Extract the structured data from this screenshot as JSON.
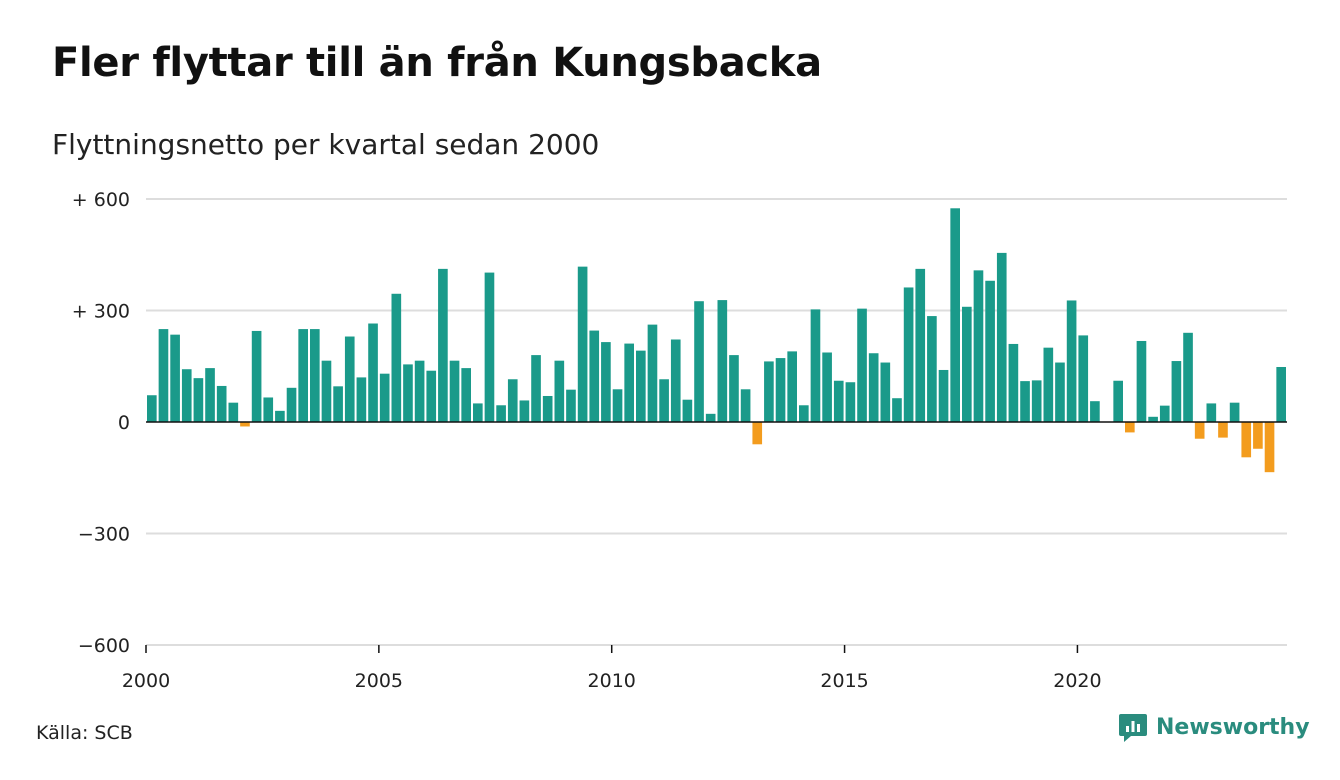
{
  "header": {
    "title": "Fler flyttar till än från Kungsbacka",
    "subtitle": "Flyttningsnetto per kvartal sedan 2000"
  },
  "footer": {
    "source": "Källa: SCB",
    "brand": "Newsworthy"
  },
  "chart_data": {
    "type": "bar",
    "title": "Fler flyttar till än från Kungsbacka",
    "subtitle": "Flyttningsnetto per kvartal sedan 2000",
    "x_start": "2000 Q1",
    "x_ticks": [
      "2000",
      "2005",
      "2010",
      "2015",
      "2020"
    ],
    "y_ticks": [
      {
        "value": 600,
        "label": "+ 600"
      },
      {
        "value": 300,
        "label": "+ 300"
      },
      {
        "value": 0,
        "label": "0"
      },
      {
        "value": -300,
        "label": "−300"
      },
      {
        "value": -600,
        "label": "−600"
      }
    ],
    "ylim": [
      -600,
      600
    ],
    "grid": true,
    "colors": {
      "positive": "#1a9a8a",
      "negative": "#f39c1e",
      "grid": "#dddddd",
      "axis": "#111111"
    },
    "values": [
      72,
      250,
      235,
      142,
      118,
      145,
      97,
      52,
      -12,
      245,
      66,
      30,
      92,
      250,
      250,
      165,
      96,
      230,
      120,
      265,
      130,
      345,
      155,
      165,
      138,
      412,
      165,
      145,
      50,
      402,
      45,
      115,
      58,
      180,
      70,
      165,
      87,
      418,
      246,
      215,
      88,
      211,
      192,
      262,
      115,
      222,
      60,
      325,
      22,
      328,
      180,
      88,
      -60,
      163,
      172,
      190,
      45,
      303,
      187,
      111,
      107,
      305,
      185,
      160,
      64,
      362,
      412,
      285,
      140,
      575,
      310,
      408,
      380,
      455,
      210,
      110,
      112,
      200,
      160,
      327,
      233,
      56,
      0,
      111,
      -28,
      218,
      14,
      44,
      164,
      240,
      -45,
      50,
      -42,
      52,
      -95,
      -72,
      -135,
      148
    ]
  }
}
